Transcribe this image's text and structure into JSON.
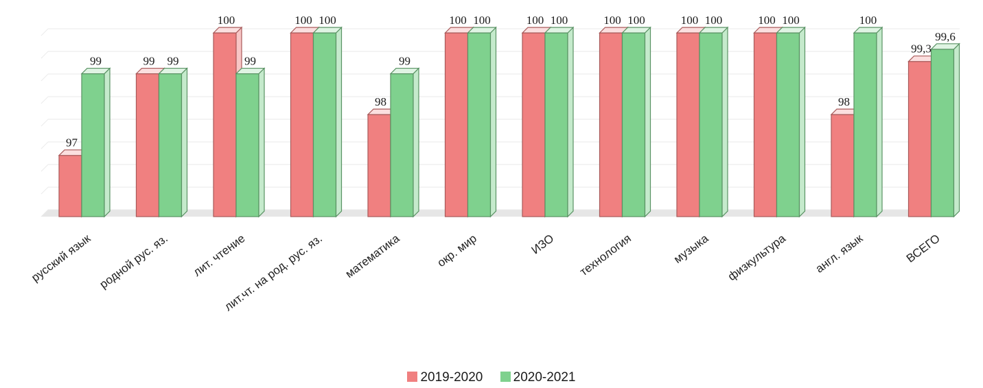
{
  "chart_data": {
    "type": "bar",
    "categories": [
      "русский язык",
      "родной рус. яз.",
      "лит. чтение",
      "лит.чт. на род. рус. яз.",
      "математика",
      "окр. мир",
      "ИЗО",
      "технология",
      "музыка",
      "физкультура",
      "англ. язык",
      "ВСЕГО"
    ],
    "series": [
      {
        "name": "2019-2020",
        "values": [
          97,
          99,
          100,
          100,
          98,
          100,
          100,
          100,
          100,
          100,
          98,
          99.3
        ],
        "labels": [
          "97",
          "99",
          "100",
          "100",
          "98",
          "100",
          "100",
          "100",
          "100",
          "100",
          "98",
          "99,3"
        ],
        "color": "#f08080"
      },
      {
        "name": "2020-2021",
        "values": [
          99,
          99,
          99,
          100,
          99,
          100,
          100,
          100,
          100,
          100,
          100,
          99.6
        ],
        "labels": [
          "99",
          "99",
          "99",
          "100",
          "99",
          "100",
          "100",
          "100",
          "100",
          "100",
          "100",
          "99,6"
        ],
        "color": "#7fd18e"
      }
    ],
    "ylim": [
      95.5,
      100.2
    ],
    "grid": true,
    "legend_position": "bottom"
  }
}
